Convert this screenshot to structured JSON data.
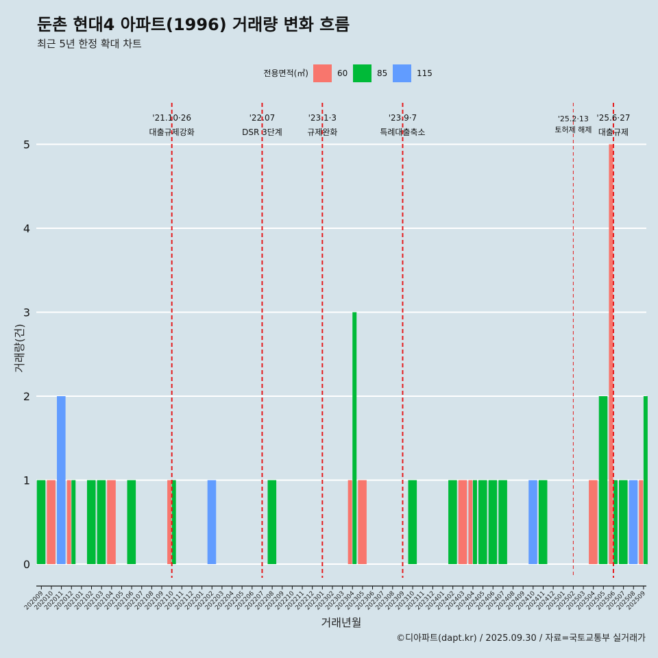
{
  "chart_data": {
    "type": "bar",
    "title": "둔촌 현대4 아파트(1996) 거래량 변화 흐름",
    "subtitle": "최근 5년 한정 확대 차트",
    "xlabel": "거래년월",
    "ylabel": "거래량(건)",
    "ylim": [
      0,
      5
    ],
    "yticks": [
      "0",
      "1",
      "2",
      "3",
      "4",
      "5"
    ],
    "legend": {
      "title": "전용면적(㎡)",
      "entries": [
        {
          "name": "60",
          "color": "#f8766d"
        },
        {
          "name": "85",
          "color": "#00ba38"
        },
        {
          "name": "115",
          "color": "#619cff"
        }
      ]
    },
    "categories": [
      "202009",
      "202010",
      "202011",
      "202012",
      "202101",
      "202102",
      "202103",
      "202104",
      "202105",
      "202106",
      "202107",
      "202108",
      "202109",
      "202110",
      "202111",
      "202112",
      "202201",
      "202202",
      "202203",
      "202204",
      "202205",
      "202206",
      "202207",
      "202208",
      "202209",
      "202210",
      "202211",
      "202212",
      "202301",
      "202302",
      "202303",
      "202304",
      "202305",
      "202306",
      "202307",
      "202308",
      "202309",
      "202310",
      "202311",
      "202312",
      "202401",
      "202402",
      "202403",
      "202404",
      "202405",
      "202406",
      "202407",
      "202408",
      "202409",
      "202410",
      "202411",
      "202412",
      "202501",
      "202502",
      "202503",
      "202504",
      "202505",
      "202506",
      "202507",
      "202508",
      "202509"
    ],
    "series": [
      {
        "name": "60",
        "values": [
          0,
          1,
          0,
          1,
          0,
          0,
          0,
          1,
          0,
          0,
          0,
          0,
          0,
          1,
          0,
          0,
          0,
          0,
          0,
          0,
          0,
          0,
          0,
          0,
          0,
          0,
          0,
          0,
          0,
          0,
          0,
          1,
          1,
          0,
          0,
          0,
          0,
          0,
          0,
          0,
          0,
          0,
          1,
          1,
          0,
          0,
          0,
          0,
          0,
          0,
          0,
          0,
          0,
          0,
          0,
          1,
          0,
          5,
          0,
          0,
          1
        ]
      },
      {
        "name": "85",
        "values": [
          1,
          0,
          0,
          1,
          0,
          1,
          1,
          0,
          0,
          1,
          0,
          0,
          0,
          1,
          0,
          0,
          0,
          0,
          0,
          0,
          0,
          0,
          0,
          1,
          0,
          0,
          0,
          0,
          0,
          0,
          0,
          3,
          0,
          0,
          0,
          0,
          0,
          1,
          0,
          0,
          0,
          1,
          0,
          1,
          1,
          1,
          1,
          0,
          0,
          0,
          1,
          0,
          0,
          0,
          0,
          0,
          2,
          1,
          1,
          0,
          2
        ]
      },
      {
        "name": "115",
        "values": [
          0,
          0,
          2,
          0,
          0,
          0,
          0,
          0,
          0,
          0,
          0,
          0,
          0,
          0,
          0,
          0,
          0,
          1,
          0,
          0,
          0,
          0,
          0,
          0,
          0,
          0,
          0,
          0,
          0,
          0,
          0,
          0,
          0,
          0,
          0,
          0,
          0,
          0,
          0,
          0,
          0,
          0,
          0,
          0,
          0,
          0,
          0,
          0,
          0,
          1,
          0,
          0,
          0,
          0,
          0,
          0,
          0,
          0,
          0,
          1,
          0
        ]
      }
    ],
    "annotations": [
      {
        "index": 13,
        "line1": "'21.10·26",
        "line2": "대출규제강화",
        "style": "bold"
      },
      {
        "index": 22,
        "line1": "'22.07",
        "line2": "DSR 3단계",
        "style": "bold"
      },
      {
        "index": 28,
        "line1": "'23.1·3",
        "line2": "규제완화",
        "style": "bold"
      },
      {
        "index": 36,
        "line1": "'23.9·7",
        "line2": "특례대출축소",
        "style": "bold"
      },
      {
        "index": 53,
        "line1": "'25.2·13",
        "line2": "토허제 해제",
        "style": "thin"
      },
      {
        "index": 57,
        "line1": "'25.6·27",
        "line2": "대출규제",
        "style": "bold"
      }
    ],
    "caption": "©디아파트(dapt.kr) / 2025.09.30 / 자료=국토교통부 실거래가"
  }
}
